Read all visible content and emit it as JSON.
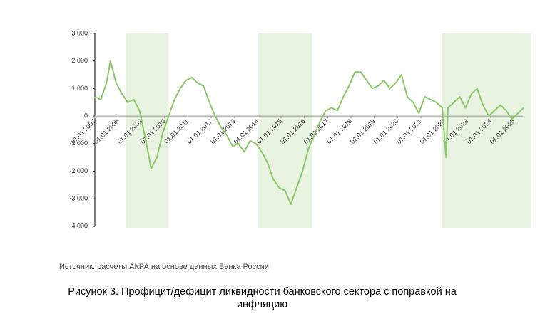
{
  "chart_data": {
    "type": "line",
    "source": "Источник: расчеты АКРА на основе данных Банка России",
    "caption": "Рисунок 3. Профицит/дефицит ликвидности банковского сектора с поправкой на инфляцию",
    "x": [
      "2007-01",
      "2007-04",
      "2007-07",
      "2007-09",
      "2007-12",
      "2008-03",
      "2008-06",
      "2008-09",
      "2008-12",
      "2009-03",
      "2009-06",
      "2009-09",
      "2009-12",
      "2010-03",
      "2010-06",
      "2010-09",
      "2010-12",
      "2011-03",
      "2011-06",
      "2011-09",
      "2011-12",
      "2012-03",
      "2012-06",
      "2012-09",
      "2012-12",
      "2013-03",
      "2013-06",
      "2013-09",
      "2013-12",
      "2014-03",
      "2014-06",
      "2014-09",
      "2014-12",
      "2015-03",
      "2015-06",
      "2015-09",
      "2015-12",
      "2016-03",
      "2016-06",
      "2016-09",
      "2016-12",
      "2017-03",
      "2017-06",
      "2017-09",
      "2017-12",
      "2018-03",
      "2018-06",
      "2018-09",
      "2018-12",
      "2019-03",
      "2019-06",
      "2019-09",
      "2019-12",
      "2020-03",
      "2020-06",
      "2020-09",
      "2020-12",
      "2021-03",
      "2021-06",
      "2021-09",
      "2021-12",
      "2022-02",
      "2022-03",
      "2022-06",
      "2022-09",
      "2022-12",
      "2023-03",
      "2023-06",
      "2023-09",
      "2023-12",
      "2024-03",
      "2024-06",
      "2024-09",
      "2024-12",
      "2025-03",
      "2025-06"
    ],
    "series": [
      {
        "color": "#8cc56a",
        "values": [
          700,
          600,
          1200,
          2000,
          1200,
          800,
          500,
          600,
          200,
          -800,
          -1900,
          -1500,
          -600,
          0,
          600,
          1000,
          1300,
          1400,
          1200,
          1100,
          500,
          0,
          -400,
          -700,
          -1100,
          -1000,
          -1300,
          -900,
          -1000,
          -1300,
          -1700,
          -2300,
          -2600,
          -2700,
          -3200,
          -2600,
          -2000,
          -1200,
          -700,
          -200,
          200,
          300,
          200,
          700,
          1100,
          1600,
          1600,
          1300,
          1000,
          1100,
          1300,
          1000,
          1200,
          1500,
          700,
          500,
          100,
          700,
          600,
          500,
          300,
          -1500,
          300,
          500,
          700,
          300,
          800,
          1000,
          400,
          0,
          200,
          400,
          200,
          -100,
          100,
          300
        ]
      }
    ],
    "shaded_ranges": [
      [
        "2008-05",
        "2010-03"
      ],
      [
        "2014-01",
        "2016-05"
      ],
      [
        "2021-12",
        "2025-10"
      ]
    ],
    "shade_color": "#e9f3e1",
    "xlim": [
      "2007-01",
      "2025-10"
    ],
    "xticks": [
      {
        "value": "2007-01",
        "label": "01.01.2007"
      },
      {
        "value": "2008-01",
        "label": "01.01.2008"
      },
      {
        "value": "2009-01",
        "label": "01.01.2009"
      },
      {
        "value": "2010-01",
        "label": "01.01.2010"
      },
      {
        "value": "2011-01",
        "label": "01.01.2011"
      },
      {
        "value": "2012-01",
        "label": "01.01.2012"
      },
      {
        "value": "2013-01",
        "label": "01.01.2013"
      },
      {
        "value": "2014-01",
        "label": "01.01.2014"
      },
      {
        "value": "2015-01",
        "label": "01.01.2015"
      },
      {
        "value": "2016-01",
        "label": "01.01.2016"
      },
      {
        "value": "2017-01",
        "label": "01.01.2017"
      },
      {
        "value": "2018-01",
        "label": "01.01.2018"
      },
      {
        "value": "2019-01",
        "label": "01.01.2019"
      },
      {
        "value": "2020-01",
        "label": "01.01.2020"
      },
      {
        "value": "2021-01",
        "label": "01.01.2021"
      },
      {
        "value": "2022-01",
        "label": "01.01.2022"
      },
      {
        "value": "2023-01",
        "label": "01.01.2023"
      },
      {
        "value": "2024-01",
        "label": "01.01.2024"
      },
      {
        "value": "2025-01",
        "label": "01.01.2025"
      }
    ],
    "ylim": [
      -4000,
      3000
    ],
    "yticks": [
      {
        "value": -4000,
        "label": "-4 000"
      },
      {
        "value": -3000,
        "label": "-3 000"
      },
      {
        "value": -2000,
        "label": "-2 000"
      },
      {
        "value": -1000,
        "label": "-1 000"
      },
      0,
      {
        "value": 1000,
        "label": "1 000"
      },
      {
        "value": 2000,
        "label": "2 000"
      },
      {
        "value": 3000,
        "label": "3 000"
      }
    ]
  }
}
